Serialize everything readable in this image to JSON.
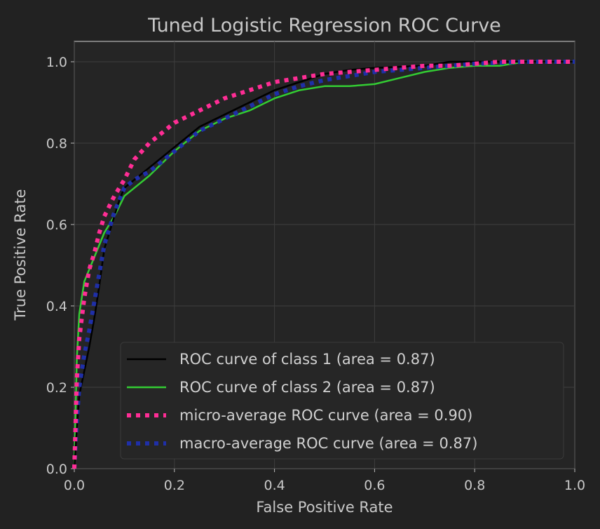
{
  "chart_data": {
    "type": "line",
    "title": "Tuned Logistic Regression ROC Curve",
    "xlabel": "False Positive Rate",
    "ylabel": "True Positive Rate",
    "xlim": [
      0.0,
      1.0
    ],
    "ylim": [
      0.0,
      1.05
    ],
    "xticks": [
      "0.0",
      "0.2",
      "0.4",
      "0.6",
      "0.8",
      "1.0"
    ],
    "yticks": [
      "0.0",
      "0.2",
      "0.4",
      "0.6",
      "0.8",
      "1.0"
    ],
    "grid": true,
    "legend_position": "lower-right",
    "background": "#222222",
    "series": [
      {
        "name": "ROC curve of class 1 (area = 0.87)",
        "color": "#000000",
        "style": "solid",
        "x": [
          0.0,
          0.005,
          0.01,
          0.02,
          0.03,
          0.04,
          0.05,
          0.06,
          0.07,
          0.08,
          0.09,
          0.1,
          0.12,
          0.15,
          0.2,
          0.25,
          0.3,
          0.35,
          0.4,
          0.45,
          0.5,
          0.55,
          0.6,
          0.7,
          0.75,
          0.8,
          0.9,
          1.0
        ],
        "y": [
          0.0,
          0.1,
          0.18,
          0.24,
          0.3,
          0.37,
          0.45,
          0.54,
          0.58,
          0.62,
          0.66,
          0.69,
          0.71,
          0.74,
          0.79,
          0.84,
          0.87,
          0.9,
          0.93,
          0.95,
          0.97,
          0.98,
          0.985,
          0.99,
          1.0,
          1.0,
          1.0,
          1.0
        ]
      },
      {
        "name": "ROC curve of class 2 (area = 0.87)",
        "color": "#33cc33",
        "style": "solid",
        "x": [
          0.0,
          0.005,
          0.01,
          0.02,
          0.03,
          0.04,
          0.05,
          0.06,
          0.08,
          0.1,
          0.12,
          0.15,
          0.2,
          0.25,
          0.3,
          0.35,
          0.4,
          0.45,
          0.5,
          0.55,
          0.6,
          0.65,
          0.7,
          0.75,
          0.8,
          0.85,
          0.9,
          1.0
        ],
        "y": [
          0.0,
          0.27,
          0.38,
          0.46,
          0.49,
          0.52,
          0.55,
          0.58,
          0.62,
          0.67,
          0.69,
          0.72,
          0.78,
          0.83,
          0.86,
          0.88,
          0.91,
          0.93,
          0.94,
          0.94,
          0.945,
          0.96,
          0.975,
          0.985,
          0.99,
          0.99,
          1.0,
          1.0
        ]
      },
      {
        "name": "micro-average ROC curve (area = 0.90)",
        "color": "#ff2d95",
        "style": "dotted",
        "x": [
          0.0,
          0.005,
          0.01,
          0.02,
          0.03,
          0.04,
          0.05,
          0.06,
          0.08,
          0.1,
          0.12,
          0.15,
          0.2,
          0.25,
          0.3,
          0.35,
          0.4,
          0.45,
          0.5,
          0.55,
          0.6,
          0.65,
          0.7,
          0.75,
          0.8,
          0.85,
          0.9,
          1.0
        ],
        "y": [
          0.0,
          0.22,
          0.32,
          0.42,
          0.49,
          0.53,
          0.58,
          0.62,
          0.67,
          0.71,
          0.76,
          0.8,
          0.85,
          0.88,
          0.91,
          0.93,
          0.95,
          0.96,
          0.97,
          0.975,
          0.98,
          0.985,
          0.99,
          0.99,
          0.995,
          1.0,
          1.0,
          1.0
        ]
      },
      {
        "name": "macro-average ROC curve (area = 0.87)",
        "color": "#1f2fa8",
        "style": "dotted",
        "x": [
          0.0,
          0.005,
          0.01,
          0.02,
          0.03,
          0.04,
          0.05,
          0.06,
          0.07,
          0.08,
          0.09,
          0.1,
          0.12,
          0.15,
          0.2,
          0.25,
          0.3,
          0.35,
          0.4,
          0.45,
          0.5,
          0.55,
          0.6,
          0.7,
          0.75,
          0.8,
          0.9,
          1.0
        ],
        "y": [
          0.0,
          0.12,
          0.2,
          0.28,
          0.34,
          0.41,
          0.48,
          0.55,
          0.59,
          0.63,
          0.66,
          0.69,
          0.71,
          0.73,
          0.78,
          0.83,
          0.86,
          0.89,
          0.92,
          0.94,
          0.955,
          0.965,
          0.975,
          0.985,
          0.99,
          0.995,
          1.0,
          1.0
        ]
      }
    ]
  }
}
